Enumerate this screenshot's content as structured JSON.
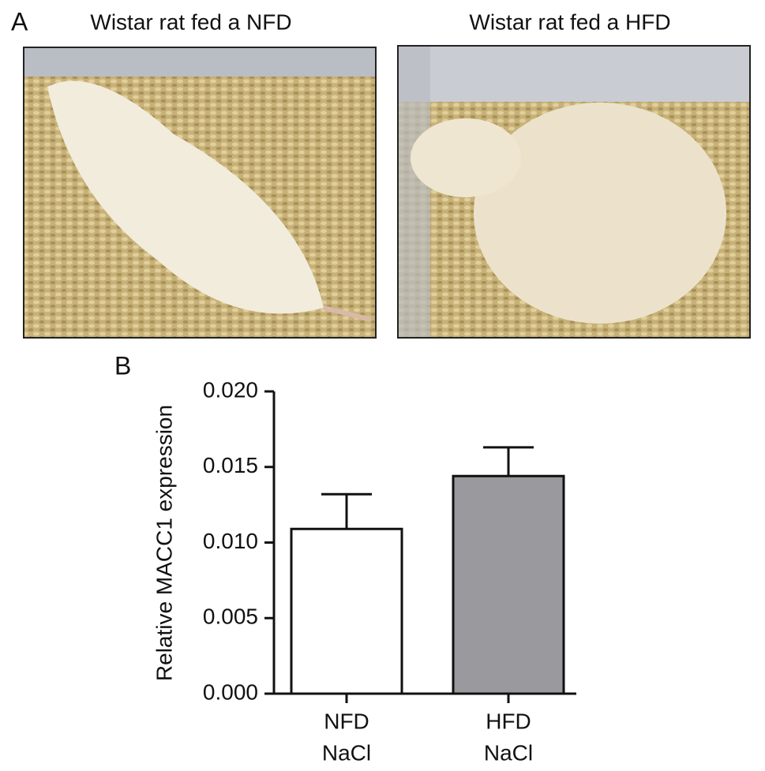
{
  "panel_a": {
    "label": "A",
    "photos": [
      {
        "title": "Wistar rat fed a NFD"
      },
      {
        "title": "Wistar rat fed a HFD"
      }
    ]
  },
  "chart_data": {
    "type": "bar",
    "panel_label": "B",
    "ylabel": "Relative MACC1 expression",
    "categories": [
      [
        "NFD",
        "NaCl"
      ],
      [
        "HFD",
        "NaCl"
      ]
    ],
    "values": [
      0.0109,
      0.0144
    ],
    "errors": [
      0.0023,
      0.0019
    ],
    "colors": [
      "#ffffff",
      "#9a9a9e"
    ],
    "ylim": [
      0,
      0.02
    ],
    "yticks": [
      {
        "value": 0,
        "label": "0.000"
      },
      {
        "value": 0.005,
        "label": "0.005"
      },
      {
        "value": 0.01,
        "label": "0.010"
      },
      {
        "value": 0.015,
        "label": "0.015"
      },
      {
        "value": 0.02,
        "label": "0.020"
      }
    ],
    "grid": false
  }
}
